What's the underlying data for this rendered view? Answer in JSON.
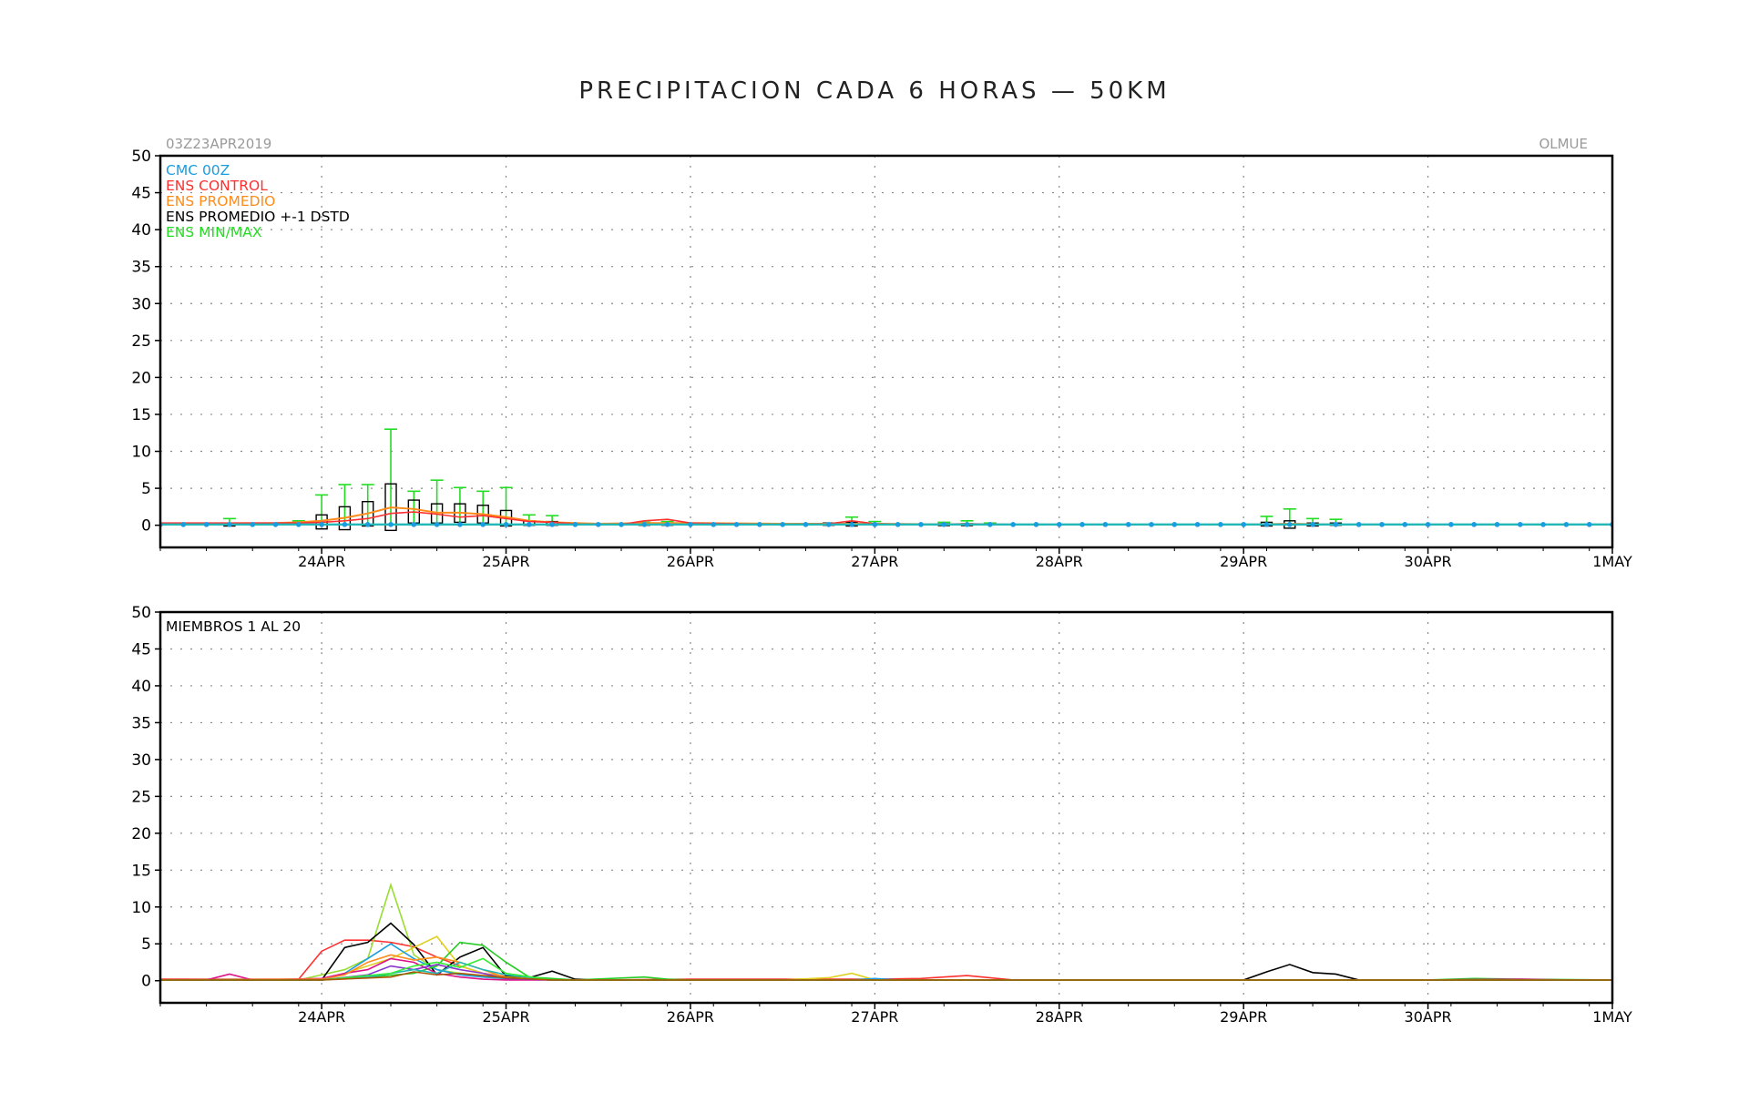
{
  "header": {
    "title": "PRECIPITACION CADA 6 HORAS — 50KM",
    "run_label": "03Z23APR2019",
    "location": "OLMUE"
  },
  "colors": {
    "cmc": "#1a9de0",
    "control": "#ff3030",
    "promedio": "#ff8c1a",
    "stdbox": "#000000",
    "minmax": "#22dd22",
    "grid": "#888888",
    "teal_line": "#22b8b8"
  },
  "chart_data": [
    {
      "type": "line",
      "panel": "top",
      "ylim": [
        -3,
        50
      ],
      "yticks": [
        0,
        5,
        10,
        15,
        20,
        25,
        30,
        35,
        40,
        45,
        50
      ],
      "xlim_days": [
        23.125,
        31.0
      ],
      "xticks": [
        {
          "day": 24,
          "label": "24APR"
        },
        {
          "day": 25,
          "label": "25APR"
        },
        {
          "day": 26,
          "label": "26APR"
        },
        {
          "day": 27,
          "label": "27APR"
        },
        {
          "day": 28,
          "label": "28APR"
        },
        {
          "day": 29,
          "label": "29APR"
        },
        {
          "day": 30,
          "label": "30APR"
        },
        {
          "day": 31,
          "label": "1MAY"
        }
      ],
      "grid": true,
      "legend": [
        {
          "label": "CMC 00Z",
          "color": "#1a9de0"
        },
        {
          "label": "ENS CONTROL",
          "color": "#ff3030"
        },
        {
          "label": "ENS PROMEDIO",
          "color": "#ff8c1a"
        },
        {
          "label": "ENS PROMEDIO +-1 DSTD",
          "color": "#000000"
        },
        {
          "label": "ENS MIN/MAX",
          "color": "#22dd22"
        }
      ],
      "cmc": {
        "x_start": 23.125,
        "dx": 0.125,
        "values": [
          0.1,
          0.1,
          0.1,
          0.1,
          0.1,
          0.1,
          0.1,
          0.1,
          0.1,
          0.1,
          0.1,
          0.1,
          0.1,
          0.1,
          0.1,
          0.1,
          0.1,
          0.1,
          0.1,
          0.1,
          0.1,
          0.1,
          0.1,
          0.1,
          0.1,
          0.1,
          0.1,
          0.1,
          0.1,
          0.1,
          0.1,
          0.1,
          0.1,
          0.1,
          0.1,
          0.1,
          0.1,
          0.1,
          0.1,
          0.1,
          0.1,
          0.1,
          0.1,
          0.1,
          0.1,
          0.1,
          0.1,
          0.1,
          0.1,
          0.1,
          0.1,
          0.1,
          0.1,
          0.1,
          0.1,
          0.1,
          0.1,
          0.1,
          0.1,
          0.1,
          0.1,
          0.1,
          0.1,
          0.1
        ]
      },
      "control": {
        "x": [
          23.125,
          23.875,
          24.0,
          24.125,
          24.25,
          24.375,
          24.5,
          24.625,
          24.75,
          24.875,
          25.0,
          25.125,
          25.25,
          25.375,
          25.5,
          25.625,
          25.75,
          25.875,
          26.0,
          26.25,
          26.5,
          26.75,
          26.875,
          27.0,
          27.25,
          27.5,
          27.75,
          28.0,
          29.0,
          30.0,
          31.0
        ],
        "y": [
          0.3,
          0.3,
          0.4,
          0.6,
          0.9,
          1.6,
          1.8,
          1.5,
          1.1,
          1.3,
          0.9,
          0.5,
          0.4,
          0.2,
          0.1,
          0.1,
          0.6,
          0.8,
          0.3,
          0.2,
          0.1,
          0.2,
          0.6,
          0.2,
          0.1,
          0.2,
          0.1,
          0.1,
          0.1,
          0.1,
          0.1
        ]
      },
      "promedio": {
        "x": [
          23.125,
          23.75,
          23.875,
          24.0,
          24.125,
          24.25,
          24.375,
          24.5,
          24.625,
          24.75,
          24.875,
          25.0,
          25.125,
          25.25,
          25.5,
          25.75,
          26.0,
          26.5,
          27.0,
          27.5,
          28.0,
          29.0,
          29.25,
          29.5,
          30.0,
          31.0
        ],
        "y": [
          0.2,
          0.3,
          0.4,
          0.6,
          1.0,
          1.6,
          2.4,
          2.2,
          1.7,
          1.7,
          1.5,
          1.1,
          0.6,
          0.4,
          0.2,
          0.3,
          0.3,
          0.2,
          0.2,
          0.1,
          0.1,
          0.1,
          0.2,
          0.1,
          0.1,
          0.1
        ]
      },
      "std_boxes": [
        {
          "x": 23.5,
          "low": -0.1,
          "high": 0.3
        },
        {
          "x": 24.0,
          "low": -0.5,
          "high": 1.4
        },
        {
          "x": 24.125,
          "low": -0.6,
          "high": 2.5
        },
        {
          "x": 24.25,
          "low": -0.1,
          "high": 3.2
        },
        {
          "x": 24.375,
          "low": -0.7,
          "high": 5.6
        },
        {
          "x": 24.5,
          "low": 0.3,
          "high": 3.4
        },
        {
          "x": 24.625,
          "low": 0.3,
          "high": 2.9
        },
        {
          "x": 24.75,
          "low": 0.4,
          "high": 2.9
        },
        {
          "x": 24.875,
          "low": 0.3,
          "high": 2.7
        },
        {
          "x": 25.0,
          "low": -0.1,
          "high": 2.0
        },
        {
          "x": 25.125,
          "low": 0.0,
          "high": 0.6
        },
        {
          "x": 25.25,
          "low": 0.0,
          "high": 0.5
        },
        {
          "x": 25.75,
          "low": 0.0,
          "high": 0.3
        },
        {
          "x": 25.875,
          "low": 0.0,
          "high": 0.3
        },
        {
          "x": 26.75,
          "low": 0.0,
          "high": 0.3
        },
        {
          "x": 26.875,
          "low": -0.1,
          "high": 0.4
        },
        {
          "x": 27.375,
          "low": 0.0,
          "high": 0.2
        },
        {
          "x": 27.5,
          "low": 0.0,
          "high": 0.2
        },
        {
          "x": 29.125,
          "low": -0.1,
          "high": 0.4
        },
        {
          "x": 29.25,
          "low": -0.4,
          "high": 0.6
        },
        {
          "x": 29.375,
          "low": -0.1,
          "high": 0.3
        },
        {
          "x": 29.5,
          "low": 0.0,
          "high": 0.3
        }
      ],
      "max_whiskers": [
        {
          "x": 23.5,
          "max": 0.9
        },
        {
          "x": 23.875,
          "max": 0.6
        },
        {
          "x": 24.0,
          "max": 4.1
        },
        {
          "x": 24.125,
          "max": 5.5
        },
        {
          "x": 24.25,
          "max": 5.5
        },
        {
          "x": 24.375,
          "max": 13.0
        },
        {
          "x": 24.5,
          "max": 4.6
        },
        {
          "x": 24.625,
          "max": 6.1
        },
        {
          "x": 24.75,
          "max": 5.1
        },
        {
          "x": 24.875,
          "max": 4.6
        },
        {
          "x": 25.0,
          "max": 5.1
        },
        {
          "x": 25.125,
          "max": 1.4
        },
        {
          "x": 25.25,
          "max": 1.3
        },
        {
          "x": 25.75,
          "max": 0.4
        },
        {
          "x": 25.875,
          "max": 0.5
        },
        {
          "x": 26.875,
          "max": 1.1
        },
        {
          "x": 27.0,
          "max": 0.5
        },
        {
          "x": 27.375,
          "max": 0.4
        },
        {
          "x": 27.5,
          "max": 0.6
        },
        {
          "x": 27.625,
          "max": 0.3
        },
        {
          "x": 29.125,
          "max": 1.2
        },
        {
          "x": 29.25,
          "max": 2.2
        },
        {
          "x": 29.375,
          "max": 0.9
        },
        {
          "x": 29.5,
          "max": 0.8
        }
      ]
    },
    {
      "type": "line",
      "panel": "bottom",
      "ylim": [
        -3,
        50
      ],
      "yticks": [
        0,
        5,
        10,
        15,
        20,
        25,
        30,
        35,
        40,
        45,
        50
      ],
      "xlim_days": [
        23.125,
        31.0
      ],
      "xticks": [
        {
          "day": 24,
          "label": "24APR"
        },
        {
          "day": 25,
          "label": "25APR"
        },
        {
          "day": 26,
          "label": "26APR"
        },
        {
          "day": 27,
          "label": "27APR"
        },
        {
          "day": 28,
          "label": "28APR"
        },
        {
          "day": 29,
          "label": "29APR"
        },
        {
          "day": 30,
          "label": "30APR"
        },
        {
          "day": 31,
          "label": "1MAY"
        }
      ],
      "grid": true,
      "panel_label": "MIEMBROS 1 AL 20",
      "series": [
        {
          "color": "#ff3030",
          "x": [
            23.125,
            23.875,
            24.0,
            24.125,
            24.25,
            24.375,
            24.5,
            24.625,
            24.75,
            24.875,
            25.0,
            25.125,
            25.25,
            25.5,
            26.0,
            27.0,
            27.25,
            27.5,
            27.75,
            28.0,
            31.0
          ],
          "y": [
            0.2,
            0.2,
            4.0,
            5.5,
            5.5,
            5.2,
            4.6,
            3.2,
            2.0,
            1.0,
            0.6,
            0.2,
            0.1,
            0.1,
            0.2,
            0.2,
            0.3,
            0.7,
            0.1,
            0.1,
            0.1
          ]
        },
        {
          "color": "#99dd33",
          "x": [
            23.125,
            23.875,
            24.0,
            24.125,
            24.25,
            24.375,
            24.5,
            24.625,
            24.75,
            24.875,
            25.0,
            25.25,
            25.5,
            26.0,
            31.0
          ],
          "y": [
            0.1,
            0.1,
            0.8,
            1.5,
            3.0,
            13.0,
            3.5,
            1.5,
            1.0,
            0.5,
            0.3,
            0.1,
            0.1,
            0.1,
            0.1
          ]
        },
        {
          "color": "#000000",
          "x": [
            23.125,
            24.0,
            24.125,
            24.25,
            24.375,
            24.5,
            24.625,
            24.75,
            24.875,
            25.0,
            25.125,
            25.25,
            25.375,
            25.5,
            29.0,
            29.125,
            29.25,
            29.375,
            29.5,
            29.625,
            29.75,
            31.0
          ],
          "y": [
            0.1,
            0.1,
            4.5,
            5.2,
            7.8,
            4.9,
            0.8,
            3.2,
            4.5,
            0.6,
            0.4,
            1.3,
            0.2,
            0.1,
            0.1,
            1.2,
            2.2,
            1.1,
            0.9,
            0.1,
            0.1,
            0.1
          ]
        },
        {
          "color": "#e0d020",
          "x": [
            23.125,
            24.0,
            24.125,
            24.25,
            24.375,
            24.5,
            24.625,
            24.75,
            24.875,
            25.0,
            25.25,
            26.5,
            26.75,
            26.875,
            27.0,
            31.0
          ],
          "y": [
            0.1,
            0.2,
            1.0,
            2.0,
            3.0,
            4.5,
            6.0,
            2.0,
            1.0,
            0.5,
            0.1,
            0.1,
            0.4,
            1.0,
            0.1,
            0.1
          ]
        },
        {
          "color": "#1a9de0",
          "x": [
            23.125,
            24.0,
            24.125,
            24.25,
            24.375,
            24.5,
            24.625,
            24.75,
            24.875,
            25.0,
            25.25,
            26.875,
            27.0,
            27.125,
            31.0
          ],
          "y": [
            0.1,
            0.2,
            1.0,
            3.0,
            5.0,
            3.0,
            1.5,
            0.8,
            0.5,
            0.3,
            0.1,
            0.1,
            0.3,
            0.1,
            0.1
          ]
        },
        {
          "color": "#22cc22",
          "x": [
            23.125,
            24.0,
            24.25,
            24.5,
            24.625,
            24.75,
            24.875,
            25.0,
            25.125,
            25.375,
            25.75,
            25.875,
            26.0,
            30.0,
            30.25,
            30.5,
            31.0
          ],
          "y": [
            0.1,
            0.1,
            0.5,
            1.0,
            2.0,
            5.2,
            4.8,
            2.5,
            0.5,
            0.1,
            0.5,
            0.2,
            0.1,
            0.1,
            0.3,
            0.2,
            0.1
          ]
        },
        {
          "color": "#dd1188",
          "x": [
            23.125,
            23.375,
            23.5,
            23.625,
            24.0,
            24.125,
            24.25,
            24.375,
            24.5,
            24.625,
            24.75,
            24.875,
            25.0,
            25.25,
            30.0,
            30.5,
            30.75,
            31.0
          ],
          "y": [
            0.1,
            0.1,
            0.9,
            0.1,
            0.3,
            1.0,
            1.5,
            3.0,
            2.5,
            1.0,
            0.5,
            0.2,
            0.1,
            0.1,
            0.1,
            0.2,
            0.1,
            0.1
          ]
        },
        {
          "color": "#ff8c1a",
          "x": [
            23.125,
            24.0,
            24.125,
            24.25,
            24.375,
            24.5,
            24.625,
            24.75,
            24.875,
            25.0,
            25.25,
            31.0
          ],
          "y": [
            0.1,
            0.2,
            0.8,
            2.5,
            3.5,
            2.8,
            3.2,
            2.5,
            1.5,
            0.4,
            0.1,
            0.1
          ]
        },
        {
          "color": "#8833cc",
          "x": [
            23.125,
            24.0,
            24.25,
            24.375,
            24.5,
            24.625,
            24.75,
            24.875,
            25.0,
            25.25,
            31.0
          ],
          "y": [
            0.1,
            0.1,
            0.8,
            2.0,
            1.5,
            2.2,
            1.5,
            1.0,
            0.3,
            0.1,
            0.1
          ]
        },
        {
          "color": "#22b8b8",
          "x": [
            23.125,
            24.0,
            24.25,
            24.5,
            24.625,
            24.75,
            24.875,
            25.0,
            25.25,
            31.0
          ],
          "y": [
            0.1,
            0.1,
            0.5,
            1.5,
            1.0,
            2.5,
            1.5,
            0.8,
            0.1,
            0.1
          ]
        },
        {
          "color": "#33ee33",
          "x": [
            23.125,
            24.0,
            24.375,
            24.5,
            24.625,
            24.75,
            24.875,
            25.0,
            25.25,
            31.0
          ],
          "y": [
            0.1,
            0.1,
            1.0,
            2.0,
            2.5,
            1.8,
            3.0,
            1.0,
            0.1,
            0.1
          ]
        },
        {
          "color": "#aa5500",
          "x": [
            23.125,
            24.0,
            24.375,
            24.5,
            24.625,
            24.75,
            25.0,
            25.25,
            31.0
          ],
          "y": [
            0.1,
            0.1,
            0.5,
            1.2,
            0.8,
            1.0,
            0.4,
            0.1,
            0.1
          ]
        }
      ]
    }
  ]
}
